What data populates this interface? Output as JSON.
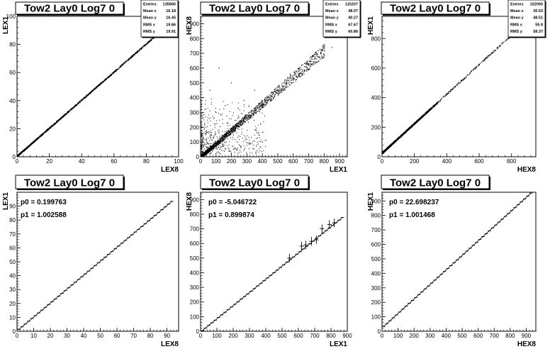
{
  "panels": [
    {
      "kind": "scatter",
      "title": "Tow2 Lay0 Log7 0",
      "xlabel": "LEX8",
      "ylabel": "LEX1",
      "xlim": [
        0,
        100
      ],
      "ylim": [
        0,
        100
      ],
      "xticks": [
        0,
        20,
        40,
        60,
        80,
        100
      ],
      "yticks": [
        0,
        20,
        40,
        60,
        80,
        100
      ],
      "stats": [
        {
          "label": "Entries",
          "value": "135840"
        },
        {
          "label": "Mean x",
          "value": "16.18"
        },
        {
          "label": "Mean y",
          "value": "16.45"
        },
        {
          "label": "RMS x",
          "value": "19.86"
        },
        {
          "label": "RMS y",
          "value": "19.91"
        }
      ]
    },
    {
      "kind": "scatter",
      "title": "Tow2 Lay0 Log7 0",
      "xlabel": "LEX1",
      "ylabel": "HEX8",
      "xlim": [
        0,
        950
      ],
      "ylim": [
        0,
        950
      ],
      "xticks": [
        0,
        100,
        200,
        300,
        400,
        500,
        600,
        700,
        800,
        900
      ],
      "yticks": [
        0,
        100,
        200,
        300,
        400,
        500,
        600,
        700,
        800,
        900
      ],
      "stats": [
        {
          "label": "Entries",
          "value": "115207"
        },
        {
          "label": "Mean x",
          "value": "48.07"
        },
        {
          "label": "Mean y",
          "value": "40.27"
        },
        {
          "label": "RMS x",
          "value": "67.67"
        },
        {
          "label": "RMS y",
          "value": "60.86"
        }
      ]
    },
    {
      "kind": "scatter",
      "title": "Tow2 Lay0 Log7 0",
      "xlabel": "HEX8",
      "ylabel": "HEX1",
      "xlim": [
        0,
        950
      ],
      "ylim": [
        0,
        950
      ],
      "xticks": [
        0,
        200,
        400,
        600,
        800
      ],
      "yticks": [
        0,
        200,
        400,
        600,
        800
      ],
      "stats": [
        {
          "label": "Entries",
          "value": "152093"
        },
        {
          "label": "Mean x",
          "value": "30.53"
        },
        {
          "label": "Mean y",
          "value": "48.51"
        },
        {
          "label": "RMS x",
          "value": "55.9"
        },
        {
          "label": "RMS y",
          "value": "58.37"
        }
      ]
    },
    {
      "kind": "fit",
      "title": "Tow2 Lay0 Log7 0",
      "xlabel": "LEX8",
      "ylabel": "LEX1",
      "xlim": [
        0,
        97
      ],
      "ylim": [
        0,
        100
      ],
      "xticks": [
        0,
        10,
        20,
        30,
        40,
        50,
        60,
        70,
        80,
        90
      ],
      "yticks": [
        0,
        10,
        20,
        30,
        40,
        50,
        60,
        70,
        80,
        90
      ],
      "fit": [
        {
          "label": "p0 = 0.199763"
        },
        {
          "label": "p1 = 1.002588"
        }
      ]
    },
    {
      "kind": "fit",
      "title": "Tow2 Lay0 Log7 0",
      "xlabel": "LEX1",
      "ylabel": "HEX8",
      "xlim": [
        0,
        900
      ],
      "ylim": [
        0,
        950
      ],
      "xticks": [
        0,
        100,
        200,
        300,
        400,
        500,
        600,
        700,
        800,
        900
      ],
      "yticks": [
        0,
        100,
        200,
        300,
        400,
        500,
        600,
        700,
        800,
        900
      ],
      "fit": [
        {
          "label": "p0 = -5.046722"
        },
        {
          "label": "p1 = 0.899874"
        }
      ]
    },
    {
      "kind": "fit",
      "title": "Tow2 Lay0 Log7 0",
      "xlabel": "HEX8",
      "ylabel": "HEX1",
      "xlim": [
        0,
        960
      ],
      "ylim": [
        0,
        960
      ],
      "xticks": [
        0,
        100,
        200,
        300,
        400,
        500,
        600,
        700,
        800,
        900
      ],
      "yticks": [
        0,
        100,
        200,
        300,
        400,
        500,
        600,
        700,
        800,
        900
      ],
      "fit": [
        {
          "label": "p0 = 22.698237"
        },
        {
          "label": "p1 = 1.001468"
        }
      ]
    }
  ],
  "chart_data": [
    {
      "type": "scatter",
      "title": "Tow2 Lay0 Log7 0",
      "xlabel": "LEX8",
      "ylabel": "LEX1",
      "xlim": [
        0,
        100
      ],
      "ylim": [
        0,
        100
      ],
      "grid": false,
      "legend": "top-right",
      "trend": {
        "slope": 1.0,
        "intercept": 0.2
      },
      "points": [
        [
          1,
          1.2
        ],
        [
          5,
          5.2
        ],
        [
          10,
          10.2
        ],
        [
          20,
          20.2
        ],
        [
          30,
          30.3
        ],
        [
          40,
          40.3
        ],
        [
          50,
          50.3
        ],
        [
          60,
          60.4
        ],
        [
          70,
          70.4
        ],
        [
          80,
          80.4
        ],
        [
          90,
          90.4
        ],
        [
          95,
          95.4
        ]
      ]
    },
    {
      "type": "scatter",
      "title": "Tow2 Lay0 Log7 0",
      "xlabel": "LEX1",
      "ylabel": "HEX8",
      "xlim": [
        0,
        950
      ],
      "ylim": [
        0,
        950
      ],
      "grid": false,
      "legend": "top-right",
      "trend": {
        "slope": 0.9,
        "intercept": -5
      },
      "points": [
        [
          20,
          15
        ],
        [
          50,
          40
        ],
        [
          80,
          65
        ],
        [
          120,
          100
        ],
        [
          150,
          130
        ],
        [
          200,
          175
        ],
        [
          250,
          220
        ],
        [
          300,
          265
        ],
        [
          400,
          355
        ],
        [
          500,
          445
        ],
        [
          600,
          535
        ],
        [
          700,
          625
        ],
        [
          750,
          700
        ],
        [
          800,
          730
        ],
        [
          850,
          740
        ],
        [
          120,
          600
        ],
        [
          60,
          450
        ],
        [
          200,
          500
        ],
        [
          100,
          300
        ],
        [
          280,
          380
        ],
        [
          350,
          450
        ],
        [
          580,
          560
        ],
        [
          640,
          560
        ]
      ]
    },
    {
      "type": "scatter",
      "title": "Tow2 Lay0 Log7 0",
      "xlabel": "HEX8",
      "ylabel": "HEX1",
      "xlim": [
        0,
        950
      ],
      "ylim": [
        0,
        950
      ],
      "grid": false,
      "legend": "top-right",
      "trend": {
        "slope": 1.0,
        "intercept": 22.7
      },
      "points": [
        [
          10,
          30
        ],
        [
          30,
          50
        ],
        [
          50,
          70
        ],
        [
          100,
          120
        ],
        [
          150,
          170
        ],
        [
          200,
          220
        ],
        [
          250,
          270
        ],
        [
          300,
          320
        ],
        [
          350,
          370
        ],
        [
          400,
          420
        ],
        [
          450,
          470
        ],
        [
          500,
          520
        ],
        [
          600,
          620
        ],
        [
          650,
          670
        ],
        [
          700,
          720
        ],
        [
          800,
          820
        ],
        [
          850,
          870
        ]
      ]
    },
    {
      "type": "line",
      "title": "Tow2 Lay0 Log7 0",
      "xlabel": "LEX8",
      "ylabel": "LEX1",
      "xlim": [
        0,
        97
      ],
      "ylim": [
        0,
        100
      ],
      "grid": false,
      "fit": {
        "p0": 0.199763,
        "p1": 1.002588
      },
      "x_range": [
        1,
        93
      ],
      "step": 2
    },
    {
      "type": "line",
      "title": "Tow2 Lay0 Log7 0",
      "xlabel": "LEX1",
      "ylabel": "HEX8",
      "xlim": [
        0,
        900
      ],
      "ylim": [
        0,
        950
      ],
      "grid": false,
      "fit": {
        "p0": -5.046722,
        "p1": 0.899874
      },
      "x_range": [
        10,
        870
      ],
      "step": 20,
      "outliers": [
        [
          545,
          500
        ],
        [
          620,
          582
        ],
        [
          645,
          590
        ],
        [
          680,
          615
        ],
        [
          710,
          625
        ],
        [
          745,
          700
        ],
        [
          790,
          730
        ],
        [
          820,
          740
        ]
      ]
    },
    {
      "type": "line",
      "title": "Tow2 Lay0 Log7 0",
      "xlabel": "HEX8",
      "ylabel": "HEX1",
      "xlim": [
        0,
        960
      ],
      "ylim": [
        0,
        960
      ],
      "grid": false,
      "fit": {
        "p0": 22.698237,
        "p1": 1.001468
      },
      "x_range": [
        10,
        930
      ],
      "step": 20
    }
  ]
}
